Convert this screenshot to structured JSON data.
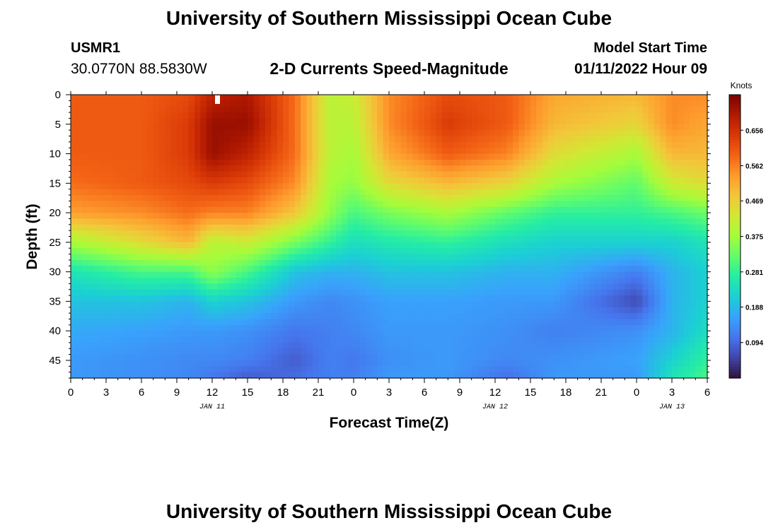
{
  "header": {
    "title": "University of Southern Mississippi Ocean Cube",
    "station": "USMR1",
    "coords": "30.0770N  88.5830W",
    "subtitle": "2-D Currents Speed-Magnitude",
    "model_start_label": "Model Start Time",
    "model_start_value": "01/11/2022 Hour 09"
  },
  "footer": {
    "title": "University of Southern Mississippi Ocean Cube"
  },
  "colors": {
    "palette": [
      "#30123b",
      "#4145ab",
      "#4675ed",
      "#39a2fc",
      "#1bcfd4",
      "#24eca6",
      "#61fc6c",
      "#a4fc3b",
      "#d1e834",
      "#f3c63a",
      "#fe9b2d",
      "#f36315",
      "#d93806",
      "#b11901",
      "#7a0402"
    ]
  },
  "chart_data": {
    "type": "heatmap",
    "xlabel": "Forecast Time(Z)",
    "ylabel": "Depth (ft)",
    "x_range_hours": [
      0,
      54
    ],
    "x_tick_labels": [
      "0",
      "3",
      "6",
      "9",
      "12",
      "15",
      "18",
      "21",
      "0",
      "3",
      "6",
      "9",
      "12",
      "15",
      "18",
      "21",
      "0",
      "3",
      "6"
    ],
    "date_labels": [
      {
        "hour": 12,
        "text": "JAN 11"
      },
      {
        "hour": 36,
        "text": "JAN 12"
      },
      {
        "hour": 51,
        "text": "JAN 13"
      }
    ],
    "y_range_ft": [
      0,
      48
    ],
    "y_ticks": [
      0,
      5,
      10,
      15,
      20,
      25,
      30,
      35,
      40,
      45
    ],
    "y_tick_labels": [
      "0",
      "5",
      "10",
      "15",
      "20",
      "25",
      "30",
      "35",
      "40",
      "45"
    ],
    "colorbar": {
      "label": "Knots",
      "range": [
        0.0,
        0.75
      ],
      "ticks": [
        0.656,
        0.562,
        0.469,
        0.375,
        0.281,
        0.188,
        0.094
      ],
      "tick_labels": [
        "0.656",
        "0.562",
        "0.469",
        "0.375",
        "0.281",
        "0.188",
        "0.094"
      ]
    },
    "speed_knots_profiles": {
      "depths_ft": [
        0,
        5,
        10,
        15,
        20,
        25,
        30,
        35,
        40,
        45,
        48
      ],
      "columns": [
        {
          "hour": 0,
          "values": [
            0.6,
            0.6,
            0.6,
            0.58,
            0.53,
            0.38,
            0.25,
            0.2,
            0.17,
            0.15,
            0.15
          ]
        },
        {
          "hour": 6,
          "values": [
            0.6,
            0.6,
            0.6,
            0.6,
            0.55,
            0.45,
            0.3,
            0.2,
            0.16,
            0.14,
            0.14
          ]
        },
        {
          "hour": 10,
          "values": [
            0.62,
            0.64,
            0.64,
            0.62,
            0.58,
            0.5,
            0.3,
            0.18,
            0.15,
            0.13,
            0.13
          ]
        },
        {
          "hour": 12,
          "values": [
            0.68,
            0.72,
            0.72,
            0.64,
            0.56,
            0.4,
            0.36,
            0.22,
            0.15,
            0.13,
            0.11
          ]
        },
        {
          "hour": 15,
          "values": [
            0.7,
            0.72,
            0.68,
            0.62,
            0.56,
            0.42,
            0.3,
            0.2,
            0.14,
            0.12,
            0.08
          ]
        },
        {
          "hour": 19,
          "values": [
            0.58,
            0.58,
            0.58,
            0.55,
            0.48,
            0.34,
            0.2,
            0.15,
            0.11,
            0.08,
            0.1
          ]
        },
        {
          "hour": 22,
          "values": [
            0.4,
            0.4,
            0.4,
            0.38,
            0.36,
            0.28,
            0.18,
            0.13,
            0.12,
            0.12,
            0.12
          ]
        },
        {
          "hour": 24,
          "values": [
            0.42,
            0.4,
            0.38,
            0.36,
            0.3,
            0.24,
            0.18,
            0.14,
            0.13,
            0.11,
            0.12
          ]
        },
        {
          "hour": 27,
          "values": [
            0.55,
            0.55,
            0.52,
            0.45,
            0.34,
            0.26,
            0.2,
            0.16,
            0.15,
            0.14,
            0.15
          ]
        },
        {
          "hour": 32,
          "values": [
            0.62,
            0.64,
            0.6,
            0.5,
            0.38,
            0.28,
            0.2,
            0.16,
            0.15,
            0.15,
            0.15
          ]
        },
        {
          "hour": 37,
          "values": [
            0.6,
            0.6,
            0.56,
            0.46,
            0.32,
            0.24,
            0.18,
            0.15,
            0.14,
            0.13,
            0.1
          ]
        },
        {
          "hour": 41,
          "values": [
            0.52,
            0.5,
            0.45,
            0.38,
            0.28,
            0.22,
            0.18,
            0.15,
            0.12,
            0.14,
            0.15
          ]
        },
        {
          "hour": 48,
          "values": [
            0.5,
            0.46,
            0.38,
            0.32,
            0.28,
            0.22,
            0.12,
            0.06,
            0.14,
            0.16,
            0.15
          ]
        },
        {
          "hour": 51,
          "values": [
            0.55,
            0.55,
            0.5,
            0.42,
            0.3,
            0.22,
            0.18,
            0.18,
            0.18,
            0.22,
            0.25
          ]
        },
        {
          "hour": 54,
          "values": [
            0.55,
            0.52,
            0.5,
            0.45,
            0.33,
            0.25,
            0.22,
            0.22,
            0.24,
            0.28,
            0.3
          ]
        }
      ]
    }
  }
}
